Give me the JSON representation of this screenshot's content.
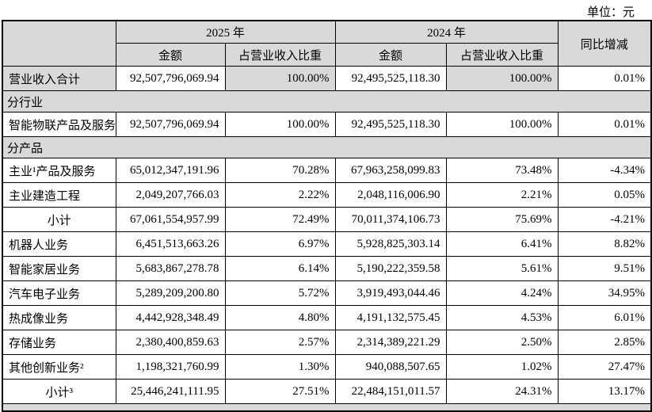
{
  "page": {
    "unit_label": "单位：元"
  },
  "table": {
    "header": {
      "y2025": "2025 年",
      "y2024": "2024 年",
      "yoy": "同比增减",
      "amount": "金额",
      "pct": "占营业收入比重"
    },
    "rows": [
      {
        "kind": "data",
        "label": "营业收入合计",
        "amount_2025": "92,507,796,069.94",
        "pct_2025": "100.00%",
        "amount_2024": "92,495,525,118.30",
        "pct_2024": "100.00%",
        "yoy": "0.01%",
        "shade_label": true,
        "shade_pcts": true
      },
      {
        "kind": "section",
        "label": "分行业"
      },
      {
        "kind": "data",
        "label": "智能物联产品及服务",
        "amount_2025": "92,507,796,069.94",
        "pct_2025": "100.00%",
        "amount_2024": "92,495,525,118.30",
        "pct_2024": "100.00%",
        "yoy": "0.01%"
      },
      {
        "kind": "section",
        "label": "分产品"
      },
      {
        "kind": "data",
        "label": "主业¹产品及服务",
        "amount_2025": "65,012,347,191.96",
        "pct_2025": "70.28%",
        "amount_2024": "67,963,258,099.83",
        "pct_2024": "73.48%",
        "yoy": "-4.34%"
      },
      {
        "kind": "data",
        "label": "主业建造工程",
        "amount_2025": "2,049,207,766.03",
        "pct_2025": "2.22%",
        "amount_2024": "2,048,116,006.90",
        "pct_2024": "2.21%",
        "yoy": "0.05%"
      },
      {
        "kind": "data",
        "label": "小计",
        "label_center": true,
        "amount_2025": "67,061,554,957.99",
        "pct_2025": "72.49%",
        "amount_2024": "70,011,374,106.73",
        "pct_2024": "75.69%",
        "yoy": "-4.21%"
      },
      {
        "kind": "data",
        "label": "机器人业务",
        "amount_2025": "6,451,513,663.26",
        "pct_2025": "6.97%",
        "amount_2024": "5,928,825,303.14",
        "pct_2024": "6.41%",
        "yoy": "8.82%"
      },
      {
        "kind": "data",
        "label": "智能家居业务",
        "amount_2025": "5,683,867,278.78",
        "pct_2025": "6.14%",
        "amount_2024": "5,190,222,359.58",
        "pct_2024": "5.61%",
        "yoy": "9.51%"
      },
      {
        "kind": "data",
        "label": "汽车电子业务",
        "amount_2025": "5,289,209,200.80",
        "pct_2025": "5.72%",
        "amount_2024": "3,919,493,044.46",
        "pct_2024": "4.24%",
        "yoy": "34.95%"
      },
      {
        "kind": "data",
        "label": "热成像业务",
        "amount_2025": "4,442,928,348.49",
        "pct_2025": "4.80%",
        "amount_2024": "4,191,132,575.45",
        "pct_2024": "4.53%",
        "yoy": "6.01%"
      },
      {
        "kind": "data",
        "label": "存储业务",
        "amount_2025": "2,380,400,859.63",
        "pct_2025": "2.57%",
        "amount_2024": "2,314,389,221.29",
        "pct_2024": "2.50%",
        "yoy": "2.85%"
      },
      {
        "kind": "data",
        "label": "其他创新业务²",
        "amount_2025": "1,198,321,760.99",
        "pct_2025": "1.30%",
        "amount_2024": "940,088,507.65",
        "pct_2024": "1.02%",
        "yoy": "27.47%"
      },
      {
        "kind": "data",
        "label": "小计³",
        "label_center": true,
        "amount_2025": "25,446,241,111.95",
        "pct_2025": "27.51%",
        "amount_2024": "22,484,151,011.57",
        "pct_2024": "24.31%",
        "yoy": "13.17%"
      },
      {
        "kind": "partial"
      }
    ]
  }
}
